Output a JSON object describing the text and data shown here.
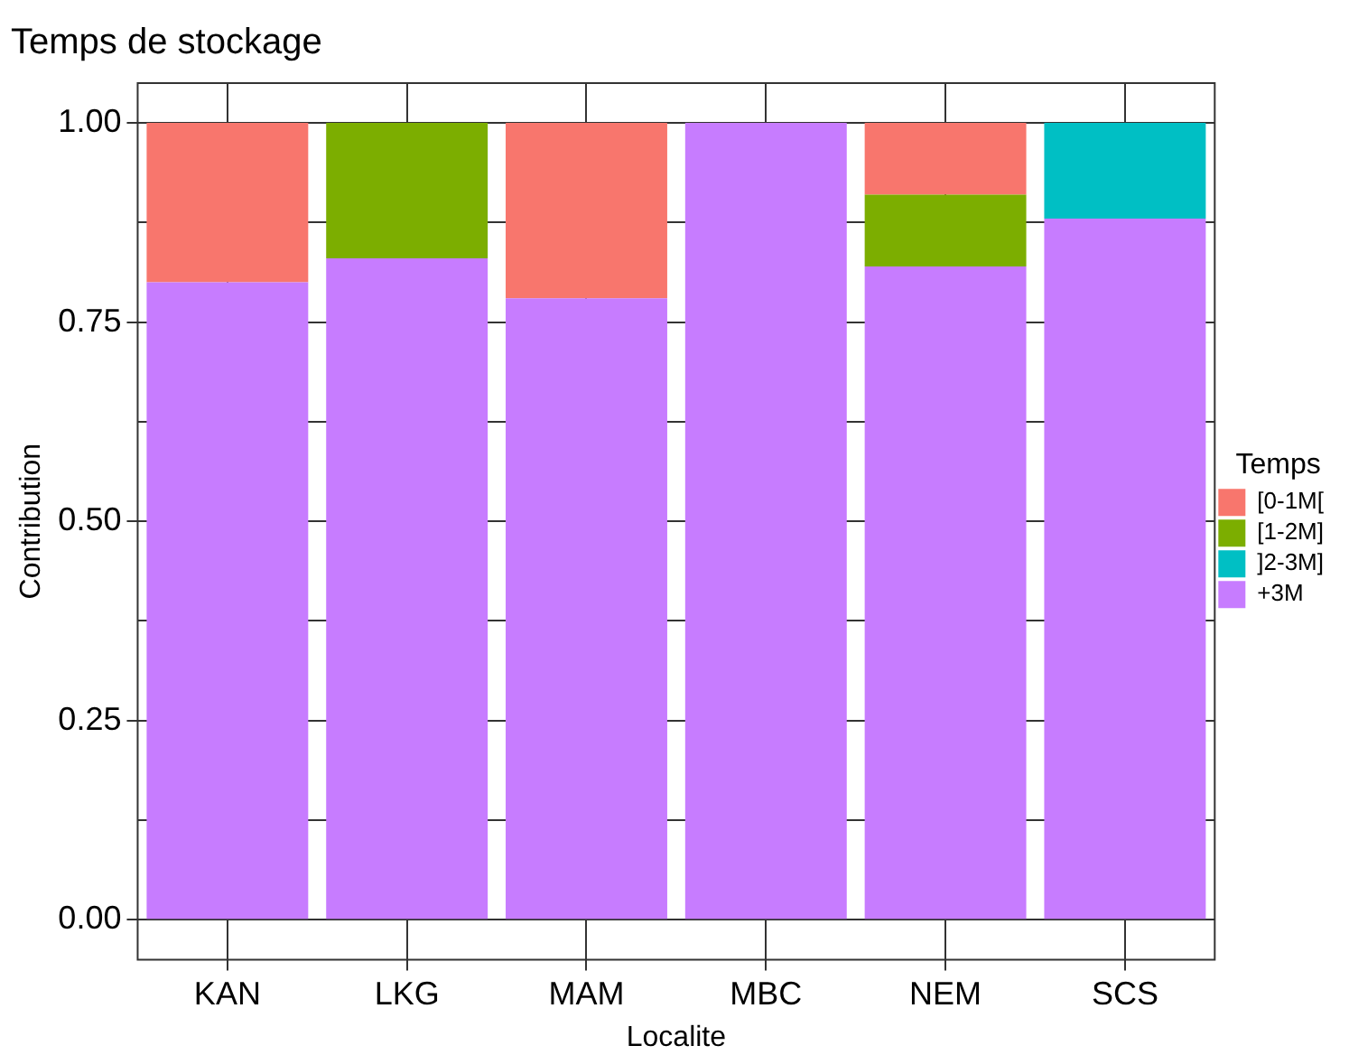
{
  "chart_data": {
    "type": "bar",
    "title": "Temps de stockage",
    "xlabel": "Localite",
    "ylabel": "Contribution",
    "legend_title": "Temps",
    "stacked": true,
    "categories": [
      "KAN",
      "LKG",
      "MAM",
      "MBC",
      "NEM",
      "SCS"
    ],
    "series": [
      {
        "name": "+3M",
        "color": "#c77cff",
        "values": [
          0.8,
          0.83,
          0.78,
          1.0,
          0.82,
          0.88
        ]
      },
      {
        "name": "]2-3M]",
        "color": "#00bfc4",
        "values": [
          0,
          0,
          0,
          0,
          0,
          0.12
        ]
      },
      {
        "name": "[1-2M]",
        "color": "#7cae00",
        "values": [
          0,
          0.17,
          0,
          0,
          0.09,
          0
        ]
      },
      {
        "name": "[0-1M[",
        "color": "#f8766d",
        "values": [
          0.2,
          0,
          0.22,
          0,
          0.09,
          0
        ]
      }
    ],
    "ylim": [
      -0.05,
      1.05
    ],
    "yticks": [
      {
        "value": 0,
        "label": "0.00"
      },
      {
        "value": 0.125,
        "label": null
      },
      {
        "value": 0.25,
        "label": "0.25"
      },
      {
        "value": 0.375,
        "label": null
      },
      {
        "value": 0.5,
        "label": "0.50"
      },
      {
        "value": 0.625,
        "label": null
      },
      {
        "value": 0.75,
        "label": "0.75"
      },
      {
        "value": 0.875,
        "label": null
      },
      {
        "value": 1,
        "label": "1.00"
      }
    ],
    "grid": true,
    "legend": "right"
  }
}
